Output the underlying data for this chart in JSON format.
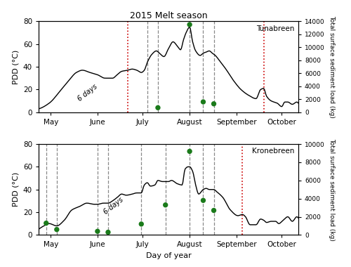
{
  "title": "2015 Melt season",
  "xlabel": "Day of year",
  "ylabel_left": "PDD (°C)",
  "ylabel_right": "Total surface sediment load (kg)",
  "month_labels": [
    "May",
    "June",
    "July",
    "August",
    "September",
    "October"
  ],
  "month_days": [
    121,
    152,
    182,
    213,
    244,
    274
  ],
  "xlim": [
    113,
    285
  ],
  "ylim_pdd": [
    0,
    80
  ],
  "ylim_sed_tuna": [
    0,
    14000
  ],
  "ylim_sed_krone": [
    0,
    10000
  ],
  "tuna_red_dashed": [
    172,
    262
  ],
  "tuna_landsat_days": [
    185,
    192,
    213,
    222,
    229
  ],
  "tuna_green_days": [
    192,
    213,
    222,
    229
  ],
  "tuna_green_sed": [
    700,
    13500,
    1600,
    1300
  ],
  "krone_red_dashed": [
    248
  ],
  "krone_landsat_days": [
    118,
    125,
    152,
    159,
    181,
    197,
    213,
    222,
    229
  ],
  "krone_green_days": [
    118,
    125,
    152,
    159,
    181,
    197,
    213,
    222,
    229
  ],
  "krone_green_sed": [
    1300,
    600,
    400,
    300,
    1200,
    3300,
    9200,
    3800,
    2700
  ],
  "green_color": "#1a7a1a",
  "red_color": "#cc0000",
  "text_6days": "6 days",
  "tuna_pdd_knots": [
    [
      113,
      3
    ],
    [
      120,
      8
    ],
    [
      128,
      20
    ],
    [
      133,
      28
    ],
    [
      138,
      35
    ],
    [
      142,
      37
    ],
    [
      147,
      35
    ],
    [
      152,
      33
    ],
    [
      157,
      30
    ],
    [
      162,
      30
    ],
    [
      165,
      33
    ],
    [
      168,
      36
    ],
    [
      172,
      37
    ],
    [
      175,
      38
    ],
    [
      178,
      37
    ],
    [
      181,
      35
    ],
    [
      183,
      37
    ],
    [
      185,
      44
    ],
    [
      188,
      51
    ],
    [
      191,
      54
    ],
    [
      193,
      52
    ],
    [
      196,
      49
    ],
    [
      199,
      56
    ],
    [
      202,
      62
    ],
    [
      205,
      58
    ],
    [
      207,
      55
    ],
    [
      209,
      64
    ],
    [
      211,
      71
    ],
    [
      213,
      75
    ],
    [
      215,
      62
    ],
    [
      217,
      54
    ],
    [
      220,
      50
    ],
    [
      222,
      52
    ],
    [
      224,
      53
    ],
    [
      226,
      54
    ],
    [
      228,
      52
    ],
    [
      230,
      50
    ],
    [
      233,
      45
    ],
    [
      237,
      38
    ],
    [
      242,
      28
    ],
    [
      247,
      20
    ],
    [
      252,
      15
    ],
    [
      257,
      12
    ],
    [
      260,
      20
    ],
    [
      262,
      21
    ],
    [
      264,
      14
    ],
    [
      267,
      10
    ],
    [
      271,
      8
    ],
    [
      274,
      5
    ],
    [
      276,
      9
    ],
    [
      278,
      9
    ],
    [
      281,
      7
    ],
    [
      284,
      9
    ],
    [
      285,
      8
    ]
  ],
  "krone_pdd_knots": [
    [
      113,
      5
    ],
    [
      118,
      9
    ],
    [
      120,
      10
    ],
    [
      125,
      8
    ],
    [
      130,
      13
    ],
    [
      135,
      22
    ],
    [
      140,
      25
    ],
    [
      145,
      28
    ],
    [
      150,
      27
    ],
    [
      152,
      27
    ],
    [
      156,
      28
    ],
    [
      159,
      28
    ],
    [
      162,
      30
    ],
    [
      165,
      33
    ],
    [
      168,
      36
    ],
    [
      171,
      35
    ],
    [
      175,
      36
    ],
    [
      178,
      37
    ],
    [
      181,
      37
    ],
    [
      183,
      44
    ],
    [
      185,
      46
    ],
    [
      187,
      43
    ],
    [
      190,
      44
    ],
    [
      192,
      48
    ],
    [
      195,
      47
    ],
    [
      197,
      47
    ],
    [
      199,
      47
    ],
    [
      201,
      48
    ],
    [
      205,
      45
    ],
    [
      208,
      44
    ],
    [
      210,
      58
    ],
    [
      212,
      60
    ],
    [
      213,
      60
    ],
    [
      215,
      56
    ],
    [
      217,
      44
    ],
    [
      219,
      36
    ],
    [
      222,
      40
    ],
    [
      224,
      41
    ],
    [
      226,
      40
    ],
    [
      229,
      40
    ],
    [
      231,
      38
    ],
    [
      235,
      33
    ],
    [
      240,
      22
    ],
    [
      245,
      17
    ],
    [
      248,
      18
    ],
    [
      250,
      16
    ],
    [
      253,
      9
    ],
    [
      257,
      9
    ],
    [
      260,
      14
    ],
    [
      262,
      13
    ],
    [
      264,
      11
    ],
    [
      267,
      12
    ],
    [
      270,
      12
    ],
    [
      272,
      10
    ],
    [
      275,
      13
    ],
    [
      278,
      16
    ],
    [
      281,
      12
    ],
    [
      284,
      16
    ],
    [
      285,
      15
    ]
  ]
}
